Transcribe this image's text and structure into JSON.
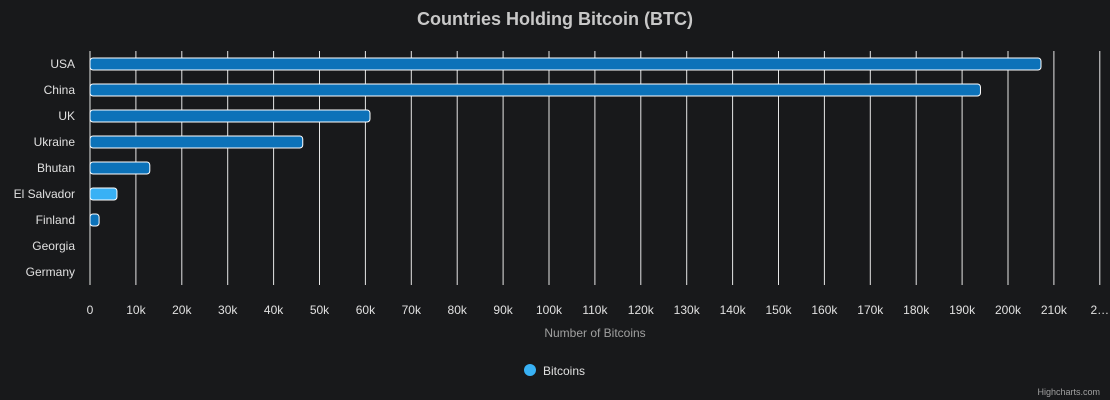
{
  "chart_data": {
    "type": "bar",
    "orientation": "horizontal",
    "title": "Countries Holding Bitcoin (BTC)",
    "xlabel": "Number of Bitcoins",
    "categories": [
      "USA",
      "China",
      "UK",
      "Ukraine",
      "Bhutan",
      "El Salvador",
      "Finland",
      "Georgia",
      "Germany"
    ],
    "series": [
      {
        "name": "Bitcoins",
        "values": [
          207189,
          194000,
          61000,
          46351,
          13029,
          5875,
          1981,
          66,
          0
        ]
      }
    ],
    "xlim": [
      0,
      220000
    ],
    "tick_interval": 10000,
    "tick_labels": [
      "0",
      "10k",
      "20k",
      "30k",
      "40k",
      "50k",
      "60k",
      "70k",
      "80k",
      "90k",
      "100k",
      "110k",
      "120k",
      "130k",
      "140k",
      "150k",
      "160k",
      "170k",
      "180k",
      "190k",
      "200k",
      "210k",
      "2…"
    ],
    "grid": true,
    "legend_position": "bottom-center",
    "colors": {
      "background": "#18191b",
      "bar_default": "#0c72b9",
      "bar_highlight": "#38b1f5",
      "bar_border": "#ffffff",
      "grid": "#e6e6e6",
      "text": "#e0e0e0",
      "muted_text": "#a0a0a0",
      "legend_marker": "#38b1f5"
    },
    "highlighted_category": "El Salvador",
    "credits": "Highcharts.com"
  }
}
